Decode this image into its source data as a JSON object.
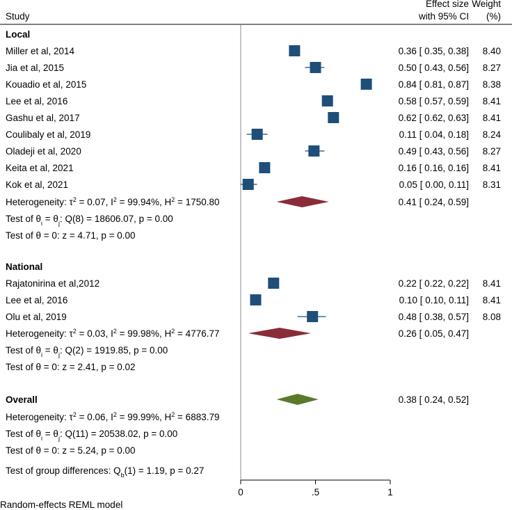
{
  "chart_data": {
    "type": "forest",
    "headers": {
      "study": "Study",
      "effect_line1": "Effect size",
      "effect_line2": "with 95% CI",
      "weight_line1": "Weight",
      "weight_line2": "(%)"
    },
    "xaxis": {
      "min": 0,
      "max": 1,
      "ticks": [
        {
          "value": 0,
          "label": "0"
        },
        {
          "value": 0.5,
          "label": ".5"
        },
        {
          "value": 1,
          "label": "1"
        }
      ]
    },
    "groups": [
      {
        "name": "Local",
        "studies": [
          {
            "label": "Miller et al, 2014",
            "es": 0.36,
            "lo": 0.35,
            "hi": 0.38,
            "ci_text": "0.36 [ 0.35,  0.38]",
            "weight": "8.40"
          },
          {
            "label": "Jia et al, 2015",
            "es": 0.5,
            "lo": 0.43,
            "hi": 0.56,
            "ci_text": "0.50 [ 0.43,  0.56]",
            "weight": "8.27"
          },
          {
            "label": "Kouadio et al, 2015",
            "es": 0.84,
            "lo": 0.81,
            "hi": 0.87,
            "ci_text": "0.84 [ 0.81,  0.87]",
            "weight": "8.38"
          },
          {
            "label": "Lee et al, 2016",
            "es": 0.58,
            "lo": 0.57,
            "hi": 0.59,
            "ci_text": "0.58 [ 0.57,  0.59]",
            "weight": "8.41"
          },
          {
            "label": "Gashu et al, 2017",
            "es": 0.62,
            "lo": 0.62,
            "hi": 0.63,
            "ci_text": "0.62 [ 0.62,  0.63]",
            "weight": "8.41"
          },
          {
            "label": "Coulibaly et al, 2019",
            "es": 0.11,
            "lo": 0.04,
            "hi": 0.18,
            "ci_text": "0.11 [ 0.04,  0.18]",
            "weight": "8.24"
          },
          {
            "label": "Oladeji et al, 2020",
            "es": 0.49,
            "lo": 0.43,
            "hi": 0.56,
            "ci_text": "0.49 [ 0.43,  0.56]",
            "weight": "8.27"
          },
          {
            "label": "Keita et al, 2021",
            "es": 0.16,
            "lo": 0.16,
            "hi": 0.16,
            "ci_text": "0.16 [ 0.16,  0.16]",
            "weight": "8.41"
          },
          {
            "label": "Kok et al, 2021",
            "es": 0.05,
            "lo": 0.0,
            "hi": 0.11,
            "ci_text": "0.05 [ 0.00,  0.11]",
            "weight": "8.31"
          }
        ],
        "pooled": {
          "es": 0.41,
          "lo": 0.24,
          "hi": 0.59,
          "ci_text": "0.41 [ 0.24,  0.59]",
          "color": "#8b2c3a"
        },
        "heterogeneity": {
          "prefix": "Heterogeneity: τ",
          "tau2": " = 0.07, I",
          "i2": " = 99.94%, H",
          "h2": " = 1750.80"
        },
        "test_theta_eq": {
          "a": "Test of θ",
          "sub1": "i",
          "b": " = θ",
          "sub2": "j",
          "c": ": Q(8) = 18606.07, p = 0.00"
        },
        "test_theta_zero": "Test of θ = 0: z = 4.71, p = 0.00"
      },
      {
        "name": "National",
        "studies": [
          {
            "label": "Rajatonirina et al,2012",
            "es": 0.22,
            "lo": 0.22,
            "hi": 0.22,
            "ci_text": "0.22 [ 0.22,  0.22]",
            "weight": "8.41"
          },
          {
            "label": "Lee et al, 2016",
            "es": 0.1,
            "lo": 0.1,
            "hi": 0.11,
            "ci_text": "0.10 [ 0.10,  0.11]",
            "weight": "8.41"
          },
          {
            "label": "Olu et al, 2019",
            "es": 0.48,
            "lo": 0.38,
            "hi": 0.57,
            "ci_text": "0.48 [ 0.38,  0.57]",
            "weight": "8.08"
          }
        ],
        "pooled": {
          "es": 0.26,
          "lo": 0.05,
          "hi": 0.47,
          "ci_text": "0.26 [ 0.05,  0.47]",
          "color": "#8b2c3a"
        },
        "heterogeneity": {
          "prefix": "Heterogeneity: τ",
          "tau2": " = 0.03, I",
          "i2": " = 99.98%, H",
          "h2": " = 4776.77"
        },
        "test_theta_eq": {
          "a": "Test of θ",
          "sub1": "i",
          "b": " = θ",
          "sub2": "j",
          "c": ": Q(2) = 1919.85, p = 0.00"
        },
        "test_theta_zero": "Test of θ = 0: z = 2.41, p = 0.02"
      }
    ],
    "overall": {
      "name": "Overall",
      "es": 0.38,
      "lo": 0.24,
      "hi": 0.52,
      "ci_text": "0.38 [ 0.24,  0.52]",
      "color": "#5a7a2a",
      "heterogeneity": {
        "prefix": "Heterogeneity: τ",
        "tau2": " = 0.06, I",
        "i2": " = 99.99%, H",
        "h2": " = 6883.79"
      },
      "test_theta_eq": {
        "a": "Test of θ",
        "sub1": "i",
        "b": " = θ",
        "sub2": "j",
        "c": ": Q(11) = 20538.02, p = 0.00"
      },
      "test_theta_zero": "Test of θ = 0: z = 5.24, p = 0.00",
      "group_diff": {
        "a": "Test of group differences: Q",
        "sub": "b",
        "b": "(1) = 1.19, p = 0.27"
      }
    },
    "footnote": "Random-effects REML model",
    "colors": {
      "square": "#1f4e79",
      "ci_line": "#1f4e79",
      "axis": "#000000",
      "ref_line": "#888888"
    }
  }
}
